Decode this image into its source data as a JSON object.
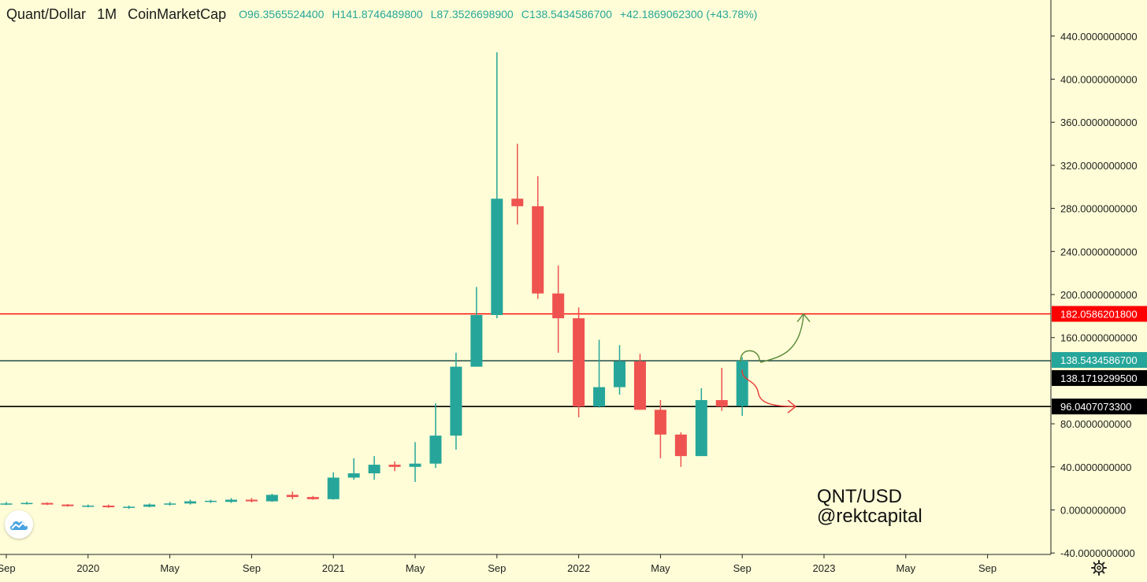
{
  "header": {
    "symbol": "Quant/Dollar",
    "interval": "1M",
    "source": "CoinMarketCap",
    "open": "O96.3565524400",
    "high": "H141.8746489800",
    "low": "L87.3526698900",
    "close": "C138.5434586700",
    "change": "+42.1869062300 (+43.78%)"
  },
  "watermark": {
    "line1": "QNT/USD",
    "line2": "@rektcapital"
  },
  "icons": {
    "logo": "tradingview-cloud-icon",
    "settings": "gear-icon"
  },
  "colors": {
    "background": "#fefdd7",
    "up": "#26a69a",
    "down": "#ef5350",
    "resistance": "#ff0000",
    "support": "#000000",
    "arrow_up": "#5a8a3a",
    "arrow_down": "#e53935"
  },
  "chart_data": {
    "type": "candlestick",
    "title": "",
    "xlabel": "",
    "ylabel": "",
    "interval": "1M",
    "x_tick_labels": [
      "Sep",
      "2020",
      "May",
      "Sep",
      "2021",
      "May",
      "Sep",
      "2022",
      "May",
      "Sep",
      "2023",
      "May",
      "Sep"
    ],
    "x_tick_months": [
      "2019-09",
      "2020-01",
      "2020-05",
      "2020-09",
      "2021-01",
      "2021-05",
      "2021-09",
      "2022-01",
      "2022-05",
      "2022-09",
      "2023-01",
      "2023-05",
      "2023-09"
    ],
    "y_tick_labels": [
      "0.0000000000",
      "40.0000000000",
      "80.0000000000",
      "160.0000000000",
      "200.0000000000",
      "240.0000000000",
      "280.0000000000",
      "320.0000000000",
      "360.0000000000",
      "400.0000000000",
      "440.0000000000",
      "-40.0000000000"
    ],
    "y_ticks": [
      0,
      40,
      80,
      160,
      200,
      240,
      280,
      320,
      360,
      400,
      440,
      -40
    ],
    "ylim": [
      -40,
      470
    ],
    "grid": false,
    "candles": [
      {
        "month": "2019-09",
        "o": 5.5,
        "h": 7.5,
        "l": 4.5,
        "c": 6
      },
      {
        "month": "2019-10",
        "o": 6,
        "h": 7.5,
        "l": 5,
        "c": 6.5
      },
      {
        "month": "2019-11",
        "o": 6.5,
        "h": 7,
        "l": 4.5,
        "c": 5
      },
      {
        "month": "2019-12",
        "o": 5,
        "h": 5.5,
        "l": 3,
        "c": 3.5
      },
      {
        "month": "2020-01",
        "o": 3.5,
        "h": 5,
        "l": 2.5,
        "c": 4
      },
      {
        "month": "2020-02",
        "o": 4,
        "h": 5,
        "l": 2,
        "c": 2.5
      },
      {
        "month": "2020-03",
        "o": 2.5,
        "h": 4,
        "l": 1,
        "c": 3
      },
      {
        "month": "2020-04",
        "o": 3,
        "h": 6,
        "l": 2.5,
        "c": 5
      },
      {
        "month": "2020-05",
        "o": 5,
        "h": 7.5,
        "l": 4,
        "c": 6
      },
      {
        "month": "2020-06",
        "o": 6,
        "h": 9.5,
        "l": 5,
        "c": 8
      },
      {
        "month": "2020-07",
        "o": 8,
        "h": 9.5,
        "l": 6.5,
        "c": 8.5
      },
      {
        "month": "2020-08",
        "o": 7.5,
        "h": 11,
        "l": 6.5,
        "c": 9.5
      },
      {
        "month": "2020-09",
        "o": 9.5,
        "h": 11,
        "l": 7,
        "c": 8
      },
      {
        "month": "2020-10",
        "o": 8,
        "h": 15,
        "l": 7.5,
        "c": 14
      },
      {
        "month": "2020-11",
        "o": 14,
        "h": 17,
        "l": 10,
        "c": 12
      },
      {
        "month": "2020-12",
        "o": 12,
        "h": 13,
        "l": 9.5,
        "c": 10
      },
      {
        "month": "2021-01",
        "o": 10,
        "h": 35,
        "l": 9.5,
        "c": 30
      },
      {
        "month": "2021-02",
        "o": 30,
        "h": 48,
        "l": 28,
        "c": 34
      },
      {
        "month": "2021-03",
        "o": 34,
        "h": 50,
        "l": 28,
        "c": 42
      },
      {
        "month": "2021-04",
        "o": 42,
        "h": 45,
        "l": 36,
        "c": 40
      },
      {
        "month": "2021-05",
        "o": 40,
        "h": 63,
        "l": 26,
        "c": 43
      },
      {
        "month": "2021-06",
        "o": 43,
        "h": 99,
        "l": 39,
        "c": 69
      },
      {
        "month": "2021-07",
        "o": 69,
        "h": 146,
        "l": 56,
        "c": 133
      },
      {
        "month": "2021-08",
        "o": 133,
        "h": 207,
        "l": 133,
        "c": 181
      },
      {
        "month": "2021-09",
        "o": 181,
        "h": 425,
        "l": 178,
        "c": 289
      },
      {
        "month": "2021-10",
        "o": 289,
        "h": 340,
        "l": 265,
        "c": 282
      },
      {
        "month": "2021-11",
        "o": 282,
        "h": 310,
        "l": 196,
        "c": 201
      },
      {
        "month": "2021-12",
        "o": 201,
        "h": 227,
        "l": 146,
        "c": 178
      },
      {
        "month": "2022-01",
        "o": 178,
        "h": 188,
        "l": 86,
        "c": 96
      },
      {
        "month": "2022-02",
        "o": 96,
        "h": 158,
        "l": 95,
        "c": 114
      },
      {
        "month": "2022-03",
        "o": 114,
        "h": 153,
        "l": 107,
        "c": 138
      },
      {
        "month": "2022-04",
        "o": 138,
        "h": 145,
        "l": 93,
        "c": 93
      },
      {
        "month": "2022-05",
        "o": 93,
        "h": 102,
        "l": 48,
        "c": 70
      },
      {
        "month": "2022-06",
        "o": 70,
        "h": 72,
        "l": 40,
        "c": 50
      },
      {
        "month": "2022-07",
        "o": 50,
        "h": 113,
        "l": 50,
        "c": 102
      },
      {
        "month": "2022-08",
        "o": 102,
        "h": 132,
        "l": 92,
        "c": 96
      },
      {
        "month": "2022-09",
        "o": 96.36,
        "h": 141.87,
        "l": 87.35,
        "c": 138.54
      }
    ],
    "horizontal_lines": [
      {
        "value": 182.05862018,
        "label": "182.0586201800",
        "color": "#ff0000"
      },
      {
        "value": 138.54345867,
        "label": "138.5434586700",
        "color": "#26a69a"
      },
      {
        "value": 138.17192995,
        "label": "138.1719299500",
        "color": "#000000"
      },
      {
        "value": 96.04070733,
        "label": "96.0407073300",
        "color": "#000000"
      }
    ],
    "annotations": [
      {
        "type": "arrow",
        "direction": "up",
        "color": "#5a8a3a",
        "points": [
          [
            "2022-09",
            146
          ],
          [
            "2022-11",
            140
          ],
          [
            "2022-12",
            182
          ]
        ]
      },
      {
        "type": "arrow",
        "direction": "down",
        "color": "#e53935",
        "points": [
          [
            "2022-09",
            123
          ],
          [
            "2022-10",
            113
          ],
          [
            "2022-12",
            96
          ]
        ]
      }
    ]
  }
}
